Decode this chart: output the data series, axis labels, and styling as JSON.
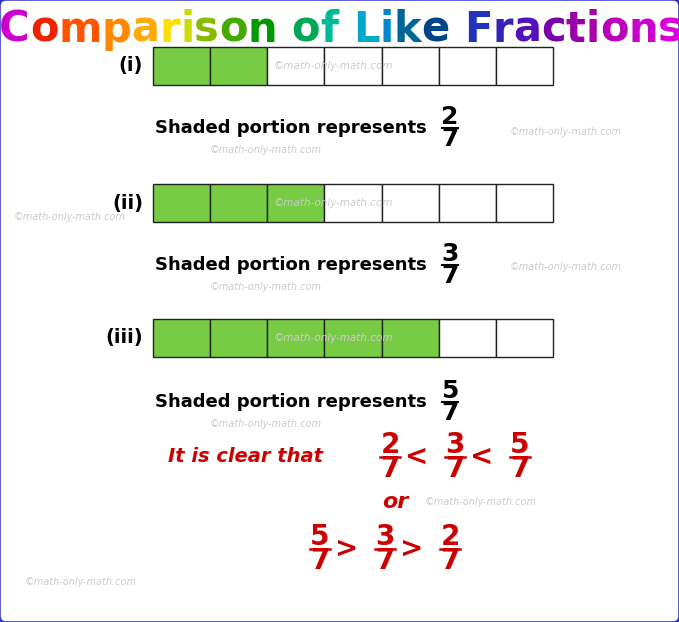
{
  "title_chars": [
    {
      "char": "C",
      "color": "#cc00cc"
    },
    {
      "char": "o",
      "color": "#ee2200"
    },
    {
      "char": "m",
      "color": "#ff5500"
    },
    {
      "char": "p",
      "color": "#ff8800"
    },
    {
      "char": "a",
      "color": "#ffaa00"
    },
    {
      "char": "r",
      "color": "#ffdd00"
    },
    {
      "char": "i",
      "color": "#ccdd00"
    },
    {
      "char": "s",
      "color": "#88bb00"
    },
    {
      "char": "o",
      "color": "#44aa00"
    },
    {
      "char": "n",
      "color": "#009900"
    },
    {
      "char": " ",
      "color": "#009900"
    },
    {
      "char": "o",
      "color": "#00aa55"
    },
    {
      "char": "f",
      "color": "#00bb99"
    },
    {
      "char": " ",
      "color": "#00bb99"
    },
    {
      "char": "L",
      "color": "#00aacc"
    },
    {
      "char": "i",
      "color": "#0088cc"
    },
    {
      "char": "k",
      "color": "#006699"
    },
    {
      "char": "e",
      "color": "#004488"
    },
    {
      "char": " ",
      "color": "#004488"
    },
    {
      "char": "F",
      "color": "#2233bb"
    },
    {
      "char": "r",
      "color": "#3322bb"
    },
    {
      "char": "a",
      "color": "#5511bb"
    },
    {
      "char": "c",
      "color": "#7700aa"
    },
    {
      "char": "t",
      "color": "#9900aa"
    },
    {
      "char": "i",
      "color": "#aa00aa"
    },
    {
      "char": "o",
      "color": "#bb00bb"
    },
    {
      "char": "n",
      "color": "#cc00cc"
    },
    {
      "char": "s",
      "color": "#dd00dd"
    }
  ],
  "fractions": [
    {
      "label": "(i)",
      "shaded": 2,
      "total": 7,
      "num": "2",
      "den": "7"
    },
    {
      "label": "(ii)",
      "shaded": 3,
      "total": 7,
      "num": "3",
      "den": "7"
    },
    {
      "label": "(iii)",
      "shaded": 5,
      "total": 7,
      "num": "5",
      "den": "7"
    }
  ],
  "bar_color_shaded": "#77cc44",
  "bar_color_empty": "#ffffff",
  "bar_edge_color": "#222222",
  "watermark_color": "#cccccc",
  "watermark_text": "©math-only-math.com",
  "border_color": "#3333cc",
  "background_color": "#ffffff",
  "red": "#cc0000"
}
